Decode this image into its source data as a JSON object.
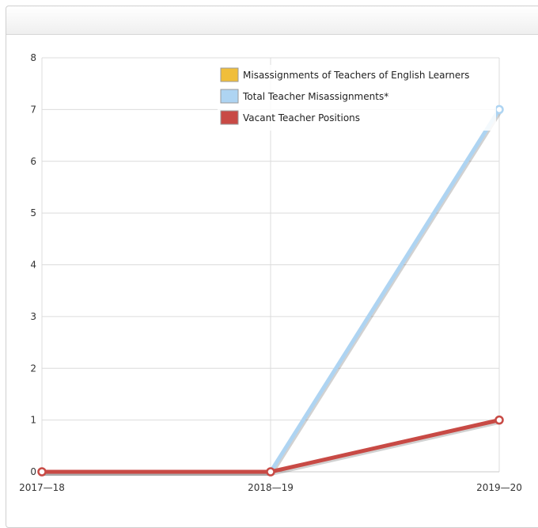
{
  "chart_data": {
    "type": "line",
    "title": "",
    "xlabel": "",
    "ylabel": "",
    "categories": [
      "2017—18",
      "2018—19",
      "2019—20"
    ],
    "ylim": [
      0,
      8
    ],
    "yticks": [
      0,
      1,
      2,
      3,
      4,
      5,
      6,
      7,
      8
    ],
    "grid": true,
    "legend_position": "top-right",
    "series": [
      {
        "name": "Misassignments of Teachers of English Learners",
        "color": "#f0be3a",
        "values": [
          0,
          0,
          0
        ],
        "show_line": false
      },
      {
        "name": "Total Teacher Misassignments*",
        "color": "#aed4f2",
        "values": [
          0,
          0,
          7
        ],
        "show_line": true
      },
      {
        "name": "Vacant Teacher Positions",
        "color": "#c84a45",
        "values": [
          0,
          0,
          1
        ],
        "show_line": true
      }
    ]
  }
}
